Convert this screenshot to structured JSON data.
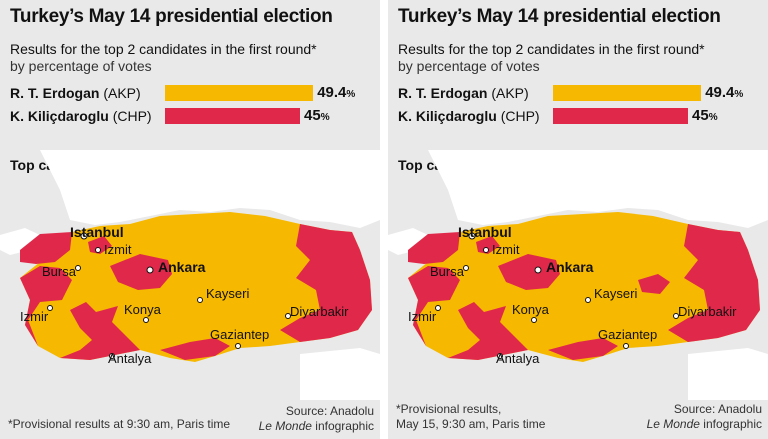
{
  "colors": {
    "erdogan": "#f6b800",
    "kilicdaroglu": "#e0294a",
    "land_other": "#ffffff",
    "sea": "#e9e9e9"
  },
  "panels": [
    {
      "title": "Turkey’s May 14 presidential election",
      "subtitle_line1": "Results for the top 2 candidates in the first round*",
      "subtitle_line2": "by percentage of votes",
      "candidates": [
        {
          "name": "R. T. Erdogan",
          "party": "(AKP)",
          "pct_value": "49.4",
          "pct_sign": "%",
          "share": 49.4
        },
        {
          "name": "K. Kiliçdaroglu",
          "party": "(CHP)",
          "pct_value": "45",
          "pct_sign": "%",
          "share": 45.0
        }
      ],
      "section_title": "Top candidate by province",
      "cities": [
        "Istanbul",
        "Izmit",
        "Bursa",
        "Ankara",
        "Izmir",
        "Konya",
        "Kayseri",
        "Diyarbakir",
        "Gaziantep",
        "Antalya"
      ],
      "note": "*Provisional results at 9:30 am, Paris time",
      "source_line1": "Source: Anadolu",
      "source_brand": "Le Monde",
      "source_word": " infographic"
    },
    {
      "title": "Turkey’s May 14 presidential election",
      "subtitle_line1": "Results for the top 2 candidates in the first round*",
      "subtitle_line2": "by percentage of votes",
      "candidates": [
        {
          "name": "R. T. Erdogan",
          "party": "(AKP)",
          "pct_value": "49.4",
          "pct_sign": "%",
          "share": 49.4
        },
        {
          "name": "K. Kiliçdaroglu",
          "party": "(CHP)",
          "pct_value": "45",
          "pct_sign": "%",
          "share": 45.0
        }
      ],
      "section_title": "Top candidate by province",
      "cities": [
        "Istanbul",
        "Izmit",
        "Bursa",
        "Ankara",
        "Izmir",
        "Konya",
        "Kayseri",
        "Diyarbakir",
        "Gaziantep",
        "Antalya"
      ],
      "note_line1": "*Provisional results,",
      "note_line2": "May 15, 9:30 am, Paris time",
      "source_line1": "Source: Anadolu",
      "source_brand": "Le Monde",
      "source_word": " infographic"
    }
  ]
}
